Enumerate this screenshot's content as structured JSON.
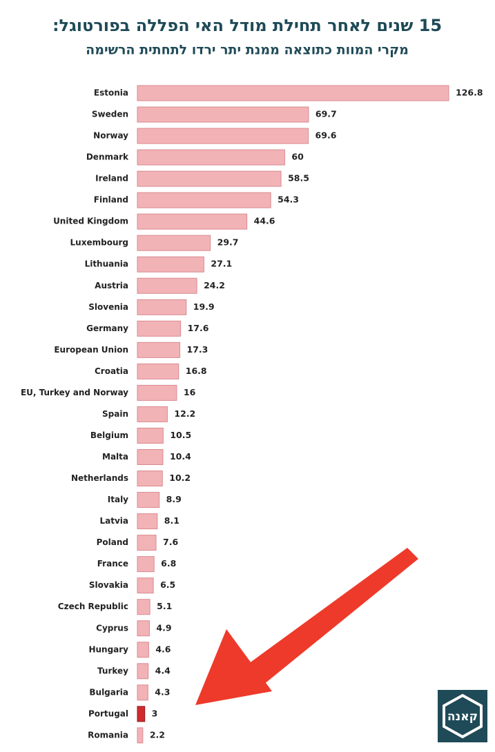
{
  "chart_data": {
    "type": "hbar",
    "title": "15 שנים לאחר תחילת מודל האי הפללה בפורטוגל:",
    "subtitle": "מקרי המוות כתוצאה ממנת יתר ירדו לתחתית הרשימה",
    "categories": [
      "Estonia",
      "Sweden",
      "Norway",
      "Denmark",
      "Ireland",
      "Finland",
      "United Kingdom",
      "Luxembourg",
      "Lithuania",
      "Austria",
      "Slovenia",
      "Germany",
      "European Union",
      "Croatia",
      "EU, Turkey and Norway",
      "Spain",
      "Belgium",
      "Malta",
      "Netherlands",
      "Italy",
      "Latvia",
      "Poland",
      "France",
      "Slovakia",
      "Czech Republic",
      "Cyprus",
      "Hungary",
      "Turkey",
      "Bulgaria",
      "Portugal",
      "Romania"
    ],
    "values": [
      126.8,
      69.7,
      69.6,
      60,
      58.5,
      54.3,
      44.6,
      29.7,
      27.1,
      24.2,
      19.9,
      17.6,
      17.3,
      16.8,
      16,
      12.2,
      10.5,
      10.4,
      10.2,
      8.9,
      8.1,
      7.6,
      6.8,
      6.5,
      5.1,
      4.9,
      4.6,
      4.4,
      4.3,
      3,
      2.2
    ],
    "colors": [
      "#f2b3b6",
      "#f2b3b6",
      "#f2b3b6",
      "#f2b3b6",
      "#f2b3b6",
      "#f2b3b6",
      "#f2b3b6",
      "#f2b3b6",
      "#f2b3b6",
      "#f2b3b6",
      "#f2b3b6",
      "#f2b3b6",
      "#f2b3b6",
      "#f2b3b6",
      "#f2b3b6",
      "#f2b3b6",
      "#f2b3b6",
      "#f2b3b6",
      "#f2b3b6",
      "#f2b3b6",
      "#f2b3b6",
      "#f2b3b6",
      "#f2b3b6",
      "#f2b3b6",
      "#f2b3b6",
      "#f2b3b6",
      "#f2b3b6",
      "#f2b3b6",
      "#f2b3b6",
      "#d12a2f",
      "#f2b3b6"
    ],
    "logo": "קאנה"
  }
}
